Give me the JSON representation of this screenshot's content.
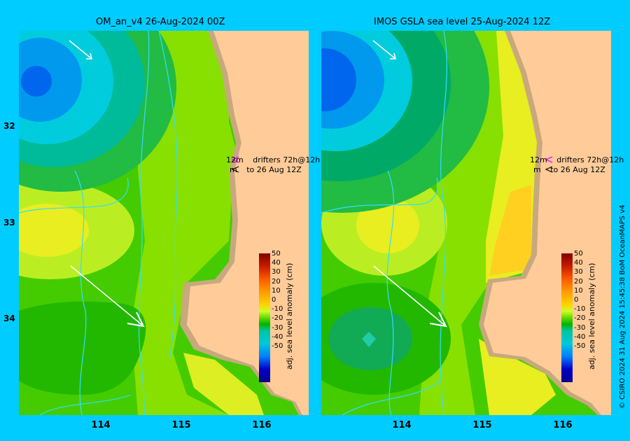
{
  "left_panel": {
    "title": "OM_an_v4  26-Aug-2024 00Z",
    "drifter_line1": "12m",
    "drifter_text1": "drifters 72h@12h",
    "drifter_line2": "m",
    "drifter_text2": "to 26 Aug 12Z"
  },
  "right_panel": {
    "title": "IMOS GSLA sea level  25-Aug-2024 12Z",
    "drifter_line1": "12m",
    "drifter_text1": "drifters 72h@12h",
    "drifter_line2": "m",
    "drifter_text2": "to 26 Aug 12Z"
  },
  "axes": {
    "lat_ticks": [
      "32",
      "33",
      "34"
    ],
    "lon_ticks": [
      "114",
      "115",
      "116"
    ]
  },
  "colorbar": {
    "label": "adj. sea level anomaly (cm)",
    "ticks": [
      "50",
      "40",
      "30",
      "20",
      "10",
      "0",
      "-10",
      "-20",
      "-30",
      "-40",
      "-50"
    ]
  },
  "credit": "© CSIRO 2024   31 Aug 2024 15:45:38 BoM OceanMAPS v4",
  "colors": {
    "background": "#00ccff",
    "land": "#ffcc99",
    "coast_shelf": "#c8a97e",
    "anomaly_green": "#33cc00",
    "anomaly_light_green": "#88e000",
    "anomaly_yellow": "#e8ee20",
    "anomaly_teal": "#00bbaa",
    "anomaly_cyan": "#00ccdd",
    "anomaly_blue": "#0066ee",
    "drifter_track": "#33ddff",
    "drifter_arrow": "#ffffff",
    "marker_magenta": "#ff00ff"
  }
}
